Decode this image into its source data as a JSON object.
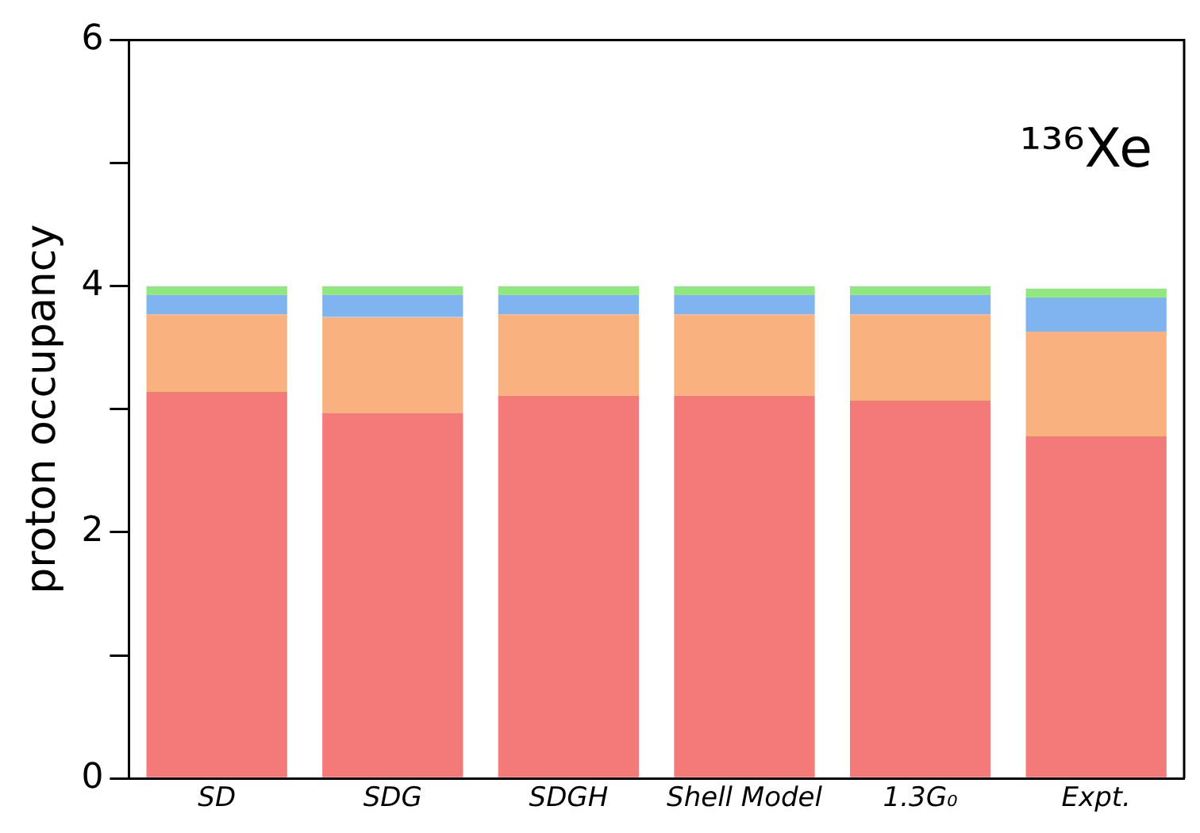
{
  "chart_data": {
    "type": "bar",
    "stacked": true,
    "ylabel": "proton occupancy",
    "annotations": [
      "¹³⁶Xe"
    ],
    "categories": [
      "SD",
      "SDG",
      "SDGH",
      "Shell Model",
      "1.3G₀",
      "Expt."
    ],
    "ylim": [
      0,
      6
    ],
    "yticks": [
      0,
      {
        "value": 1,
        "label": null
      },
      2,
      {
        "value": 3,
        "label": null
      },
      4,
      {
        "value": 5,
        "label": null
      },
      6
    ],
    "grid": false,
    "legend": false,
    "series": [
      {
        "color": "#f47a7a",
        "values": [
          3.14,
          2.97,
          3.11,
          3.11,
          3.07,
          2.78
        ]
      },
      {
        "color": "#f9b27f",
        "values": [
          0.63,
          0.78,
          0.66,
          0.66,
          0.7,
          0.85
        ]
      },
      {
        "color": "#80b4f0",
        "values": [
          0.16,
          0.18,
          0.16,
          0.16,
          0.16,
          0.28
        ]
      },
      {
        "color": "#8ee87e",
        "values": [
          0.07,
          0.07,
          0.07,
          0.07,
          0.07,
          0.07
        ]
      }
    ]
  }
}
